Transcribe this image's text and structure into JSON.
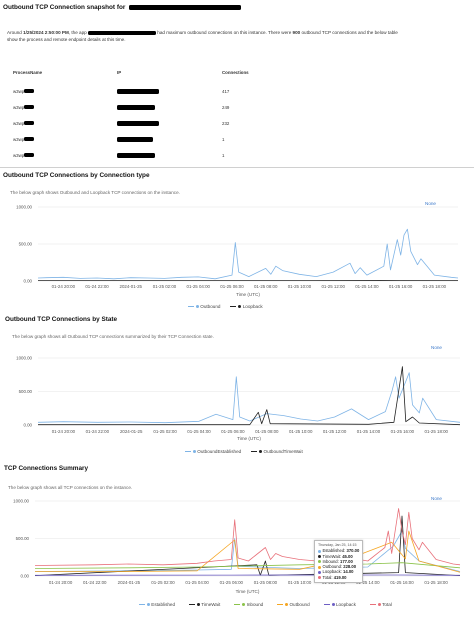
{
  "snapshot": {
    "title": "Outbound TCP Connection snapshot for",
    "desc_line1_a": "Around ",
    "desc_line1_time": "1/25/2024 2:50:00 PM",
    "desc_line1_b": ", the app",
    "desc_line1_c": "had maximum outbound connections on this instance. There were ",
    "desc_line1_count": "900",
    "desc_line1_d": " outbound TCP connections and the below table",
    "desc_line2": "show the process and remote endpoint details at this time.",
    "columns": [
      "ProcessName",
      "IP",
      "Connections"
    ],
    "rows": [
      {
        "process": "w3wp",
        "connections": "417"
      },
      {
        "process": "w3wp",
        "connections": "249"
      },
      {
        "process": "w3wp",
        "connections": "232"
      },
      {
        "process": "w3wp",
        "connections": "1"
      },
      {
        "process": "w3wp",
        "connections": "1"
      }
    ]
  },
  "colors": {
    "outbound": "#7fb4e6",
    "loopback": "#222222",
    "established": "#7fb4e6",
    "timewait": "#222222",
    "inbound": "#8bc34a",
    "outbound_summary": "#f5a623",
    "loopback_summary": "#6d5fc4",
    "total": "#e8707a"
  },
  "chart1": {
    "title": "Outbound TCP Connections by Connection type",
    "subtitle": "The below graph shows Outbound and Loopback TCP connections on the instance.",
    "none_label": "None",
    "xlabel": "Time (UTC)",
    "legend": [
      "Outbound",
      "Loopback"
    ]
  },
  "chart2": {
    "title": "Outbound TCP Connections by State",
    "subtitle": "The below graph shows all Outbound TCP connections summarized by their TCP Connection state.",
    "none_label": "None",
    "xlabel": "Time (UTC)",
    "legend": [
      "OutboundEstablished",
      "OutboundTimeWait"
    ]
  },
  "chart3": {
    "title": "TCP Connections Summary",
    "subtitle": "The below graph shows all TCP connections on the instance.",
    "none_label": "None",
    "xlabel": "Time (UTC)",
    "legend": [
      "Established",
      "TimeWait",
      "Inbound",
      "Outbound",
      "Loopback",
      "Total"
    ],
    "tooltip": {
      "title": "Thursday, Jan 25, 14:15",
      "rows": [
        {
          "label": "Established:",
          "value": "370.00",
          "color": "#7fb4e6"
        },
        {
          "label": "TimeWait:",
          "value": "45.00",
          "color": "#222222"
        },
        {
          "label": "Inbound:",
          "value": "177.00",
          "color": "#8bc34a"
        },
        {
          "label": "Outbound:",
          "value": "228.00",
          "color": "#f5a623"
        },
        {
          "label": "Loopback:",
          "value": "14.00",
          "color": "#6d5fc4"
        },
        {
          "label": "Total:",
          "value": "419.00",
          "color": "#e8707a"
        }
      ]
    }
  },
  "chart_data": [
    {
      "type": "line",
      "title": "",
      "xlabel": "Time (UTC)",
      "ylabel": "",
      "ylim": [
        0,
        1000
      ],
      "yticks": [
        "0.00",
        "500.00",
        "1000.00"
      ],
      "x_ticks": [
        "01-24 20:00",
        "01-24 22:00",
        "2024-01-25",
        "01-25 02:00",
        "01-25 04:00",
        "01-25 06:00",
        "01-25 08:00",
        "01-25 10:00",
        "01-25 12:00",
        "01-25 14:00",
        "01-25 16:00",
        "01-25 18:00"
      ],
      "x_hours": [
        0,
        2,
        4,
        6,
        8,
        10,
        12,
        14,
        16,
        18,
        20,
        22
      ],
      "x_range_hours": [
        -1.5,
        23.4
      ],
      "grid": true,
      "legend_position": "bottom",
      "series": [
        {
          "name": "Outbound",
          "color": "#7fb4e6",
          "points": [
            [
              -1.5,
              40
            ],
            [
              -1,
              45
            ],
            [
              0,
              50
            ],
            [
              1,
              35
            ],
            [
              2,
              40
            ],
            [
              3,
              30
            ],
            [
              4,
              45
            ],
            [
              5,
              40
            ],
            [
              6,
              35
            ],
            [
              7,
              50
            ],
            [
              8,
              55
            ],
            [
              9,
              30
            ],
            [
              10,
              80
            ],
            [
              10.2,
              520
            ],
            [
              10.4,
              120
            ],
            [
              11,
              60
            ],
            [
              12,
              170
            ],
            [
              12.3,
              90
            ],
            [
              12.6,
              200
            ],
            [
              13,
              140
            ],
            [
              14,
              90
            ],
            [
              15,
              60
            ],
            [
              16,
              120
            ],
            [
              17,
              240
            ],
            [
              17.3,
              100
            ],
            [
              17.6,
              180
            ],
            [
              18,
              80
            ],
            [
              19,
              200
            ],
            [
              19.2,
              500
            ],
            [
              19.4,
              150
            ],
            [
              19.8,
              560
            ],
            [
              20,
              350
            ],
            [
              20.2,
              620
            ],
            [
              20.4,
              700
            ],
            [
              20.6,
              400
            ],
            [
              21,
              220
            ],
            [
              21.2,
              300
            ],
            [
              22,
              80
            ],
            [
              23,
              50
            ],
            [
              23.4,
              40
            ]
          ]
        },
        {
          "name": "Loopback",
          "color": "#222222",
          "points": [
            [
              -1.5,
              5
            ],
            [
              5,
              5
            ],
            [
              10,
              5
            ],
            [
              15,
              5
            ],
            [
              20,
              8
            ],
            [
              23.4,
              5
            ]
          ]
        }
      ]
    },
    {
      "type": "line",
      "title": "",
      "xlabel": "Time (UTC)",
      "ylabel": "",
      "ylim": [
        0,
        1000
      ],
      "yticks": [
        "0.00",
        "500.00",
        "1000.00"
      ],
      "x_ticks": [
        "01-24 20:00",
        "01-24 22:00",
        "2024-01-25",
        "01-25 02:00",
        "01-25 04:00",
        "01-25 06:00",
        "01-25 08:00",
        "01-25 10:00",
        "01-25 12:00",
        "01-25 14:00",
        "01-25 16:00",
        "01-25 18:00"
      ],
      "x_hours": [
        0,
        2,
        4,
        6,
        8,
        10,
        12,
        14,
        16,
        18,
        20,
        22
      ],
      "x_range_hours": [
        -1.5,
        23.4
      ],
      "grid": true,
      "legend_position": "bottom",
      "series": [
        {
          "name": "OutboundEstablished",
          "color": "#7fb4e6",
          "points": [
            [
              -1.5,
              40
            ],
            [
              0,
              50
            ],
            [
              2,
              40
            ],
            [
              4,
              45
            ],
            [
              6,
              35
            ],
            [
              8,
              55
            ],
            [
              9,
              160
            ],
            [
              10,
              80
            ],
            [
              10.2,
              720
            ],
            [
              10.4,
              120
            ],
            [
              11,
              60
            ],
            [
              12,
              170
            ],
            [
              13,
              140
            ],
            [
              14,
              90
            ],
            [
              15,
              60
            ],
            [
              16,
              120
            ],
            [
              17,
              240
            ],
            [
              18,
              80
            ],
            [
              19,
              200
            ],
            [
              19.4,
              520
            ],
            [
              19.6,
              720
            ],
            [
              19.8,
              400
            ],
            [
              20.2,
              650
            ],
            [
              20.4,
              780
            ],
            [
              20.6,
              300
            ],
            [
              21,
              180
            ],
            [
              21.2,
              400
            ],
            [
              22,
              80
            ],
            [
              23.4,
              40
            ]
          ]
        },
        {
          "name": "OutboundTimeWait",
          "color": "#222222",
          "points": [
            [
              -1.5,
              5
            ],
            [
              10,
              5
            ],
            [
              11,
              5
            ],
            [
              11.5,
              190
            ],
            [
              11.7,
              20
            ],
            [
              12,
              230
            ],
            [
              12.2,
              20
            ],
            [
              18,
              10
            ],
            [
              19.5,
              40
            ],
            [
              20,
              870
            ],
            [
              20.2,
              50
            ],
            [
              20.6,
              120
            ],
            [
              21,
              30
            ],
            [
              23.4,
              5
            ]
          ]
        }
      ]
    },
    {
      "type": "line",
      "title": "",
      "xlabel": "Time (UTC)",
      "ylabel": "",
      "ylim": [
        0,
        1000
      ],
      "yticks": [
        "0.00",
        "500.00",
        "1000.00"
      ],
      "x_ticks": [
        "01-24 20:00",
        "01-24 22:00",
        "2024-01-25",
        "01-25 02:00",
        "01-25 04:00",
        "01-25 06:00",
        "01-25 08:00",
        "01-25 10:00",
        "01-25 12:00",
        "01-25 14:00",
        "01-25 16:00",
        "01-25 18:00"
      ],
      "x_hours": [
        0,
        2,
        4,
        6,
        8,
        10,
        12,
        14,
        16,
        18,
        20,
        22
      ],
      "x_range_hours": [
        -1.5,
        23.4
      ],
      "grid": true,
      "legend_position": "bottom",
      "series": [
        {
          "name": "Established",
          "color": "#7fb4e6",
          "points": [
            [
              -1.5,
              60
            ],
            [
              4,
              70
            ],
            [
              8,
              80
            ],
            [
              10,
              90
            ],
            [
              10.2,
              500
            ],
            [
              10.4,
              130
            ],
            [
              14,
              100
            ],
            [
              18,
              120
            ],
            [
              19.5,
              400
            ],
            [
              20,
              600
            ],
            [
              20.2,
              370
            ],
            [
              21,
              200
            ],
            [
              23.4,
              60
            ]
          ]
        },
        {
          "name": "TimeWait",
          "color": "#222222",
          "points": [
            [
              -1.5,
              5
            ],
            [
              11.5,
              150
            ],
            [
              11.7,
              10
            ],
            [
              12,
              200
            ],
            [
              12.2,
              10
            ],
            [
              19.8,
              45
            ],
            [
              20,
              800
            ],
            [
              20.2,
              45
            ],
            [
              23.4,
              5
            ]
          ]
        },
        {
          "name": "Inbound",
          "color": "#8bc34a",
          "points": [
            [
              -1.5,
              100
            ],
            [
              4,
              110
            ],
            [
              8,
              120
            ],
            [
              10,
              130
            ],
            [
              14,
              150
            ],
            [
              18,
              160
            ],
            [
              20,
              177
            ],
            [
              23.4,
              110
            ]
          ]
        },
        {
          "name": "Outbound",
          "color": "#f5a623",
          "points": [
            [
              -1.5,
              60
            ],
            [
              4,
              60
            ],
            [
              8,
              70
            ],
            [
              10.2,
              480
            ],
            [
              10.4,
              100
            ],
            [
              14,
              90
            ],
            [
              17,
              240
            ],
            [
              19.4,
              450
            ],
            [
              20.2,
              228
            ],
            [
              20.4,
              600
            ],
            [
              21,
              200
            ],
            [
              23.4,
              50
            ]
          ]
        },
        {
          "name": "Loopback",
          "color": "#6d5fc4",
          "points": [
            [
              -1.5,
              10
            ],
            [
              10,
              12
            ],
            [
              20,
              14
            ],
            [
              23.4,
              10
            ]
          ]
        },
        {
          "name": "Total",
          "color": "#e8707a",
          "points": [
            [
              -1.5,
              140
            ],
            [
              2,
              150
            ],
            [
              4,
              160
            ],
            [
              6,
              150
            ],
            [
              8,
              170
            ],
            [
              9,
              200
            ],
            [
              10,
              220
            ],
            [
              10.2,
              750
            ],
            [
              10.4,
              240
            ],
            [
              11,
              200
            ],
            [
              12,
              380
            ],
            [
              12.3,
              220
            ],
            [
              12.6,
              300
            ],
            [
              13,
              260
            ],
            [
              14,
              220
            ],
            [
              15,
              200
            ],
            [
              16,
              250
            ],
            [
              17,
              300
            ],
            [
              17.5,
              220
            ],
            [
              18,
              200
            ],
            [
              19,
              380
            ],
            [
              19.2,
              600
            ],
            [
              19.4,
              300
            ],
            [
              19.8,
              900
            ],
            [
              20,
              600
            ],
            [
              20.2,
              419
            ],
            [
              20.4,
              850
            ],
            [
              20.6,
              500
            ],
            [
              21,
              350
            ],
            [
              21.2,
              450
            ],
            [
              22,
              220
            ],
            [
              23,
              160
            ],
            [
              23.4,
              150
            ]
          ]
        }
      ]
    }
  ]
}
